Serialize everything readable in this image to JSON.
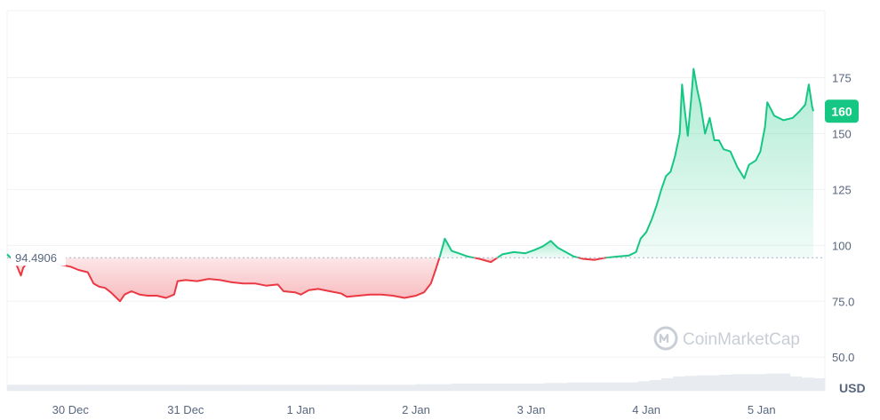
{
  "chart_data": {
    "type": "area",
    "unit": "USD",
    "watermark": "CoinMarketCap",
    "reference_value": 94.4906,
    "reference_label": "94.4906",
    "current_value": 160,
    "current_label": "160",
    "ylim": [
      35,
      205
    ],
    "y_ticks": [
      {
        "value": 50,
        "label": "50.0"
      },
      {
        "value": 75,
        "label": "75.0"
      },
      {
        "value": 100,
        "label": "100"
      },
      {
        "value": 125,
        "label": "125"
      },
      {
        "value": 150,
        "label": "150"
      },
      {
        "value": 175,
        "label": "175"
      }
    ],
    "x_ticks": [
      {
        "value": 0.55,
        "label": "30 Dec"
      },
      {
        "value": 1.55,
        "label": "31 Dec"
      },
      {
        "value": 2.55,
        "label": "1 Jan"
      },
      {
        "value": 3.55,
        "label": "2 Jan"
      },
      {
        "value": 4.55,
        "label": "3 Jan"
      },
      {
        "value": 5.55,
        "label": "4 Jan"
      },
      {
        "value": 6.55,
        "label": "5 Jan"
      }
    ],
    "xlim": [
      0,
      7.1
    ],
    "colors": {
      "up": "#16c784",
      "down": "#ea3943",
      "up_fill": "#16c784",
      "down_fill": "#ea3943",
      "grid": "#eff2f5",
      "volume": "#e8ebef",
      "reference": "#a6b0c3"
    },
    "series": [
      {
        "values": [
          [
            0.0,
            96.0
          ],
          [
            0.04,
            94.0
          ],
          [
            0.08,
            91.5
          ],
          [
            0.12,
            86.5
          ],
          [
            0.14,
            90.0
          ],
          [
            0.18,
            92.5
          ],
          [
            0.25,
            93.0
          ],
          [
            0.35,
            92.0
          ],
          [
            0.45,
            91.5
          ],
          [
            0.55,
            90.5
          ],
          [
            0.62,
            89.0
          ],
          [
            0.7,
            88.0
          ],
          [
            0.75,
            83.0
          ],
          [
            0.8,
            81.5
          ],
          [
            0.85,
            81.0
          ],
          [
            0.9,
            79.0
          ],
          [
            0.95,
            76.5
          ],
          [
            0.98,
            75.0
          ],
          [
            1.02,
            78.0
          ],
          [
            1.08,
            79.5
          ],
          [
            1.15,
            78.0
          ],
          [
            1.22,
            77.5
          ],
          [
            1.3,
            77.5
          ],
          [
            1.38,
            76.5
          ],
          [
            1.45,
            78.0
          ],
          [
            1.48,
            84.0
          ],
          [
            1.55,
            84.5
          ],
          [
            1.65,
            84.0
          ],
          [
            1.75,
            85.0
          ],
          [
            1.85,
            84.5
          ],
          [
            1.95,
            83.5
          ],
          [
            2.05,
            83.0
          ],
          [
            2.15,
            83.0
          ],
          [
            2.25,
            82.0
          ],
          [
            2.35,
            82.5
          ],
          [
            2.4,
            79.5
          ],
          [
            2.5,
            79.0
          ],
          [
            2.55,
            78.0
          ],
          [
            2.62,
            80.0
          ],
          [
            2.7,
            80.5
          ],
          [
            2.8,
            79.5
          ],
          [
            2.9,
            78.5
          ],
          [
            2.95,
            77.0
          ],
          [
            3.05,
            77.5
          ],
          [
            3.15,
            78.0
          ],
          [
            3.25,
            78.0
          ],
          [
            3.35,
            77.5
          ],
          [
            3.45,
            76.5
          ],
          [
            3.55,
            77.5
          ],
          [
            3.62,
            79.0
          ],
          [
            3.68,
            83.0
          ],
          [
            3.72,
            89.0
          ],
          [
            3.76,
            95.5
          ],
          [
            3.8,
            103.0
          ],
          [
            3.86,
            97.5
          ],
          [
            3.92,
            96.5
          ],
          [
            4.0,
            95.0
          ],
          [
            4.1,
            94.0
          ],
          [
            4.2,
            92.5
          ],
          [
            4.3,
            96.0
          ],
          [
            4.4,
            97.0
          ],
          [
            4.5,
            96.5
          ],
          [
            4.58,
            98.0
          ],
          [
            4.65,
            99.5
          ],
          [
            4.72,
            102.0
          ],
          [
            4.78,
            99.0
          ],
          [
            4.85,
            97.0
          ],
          [
            4.92,
            95.0
          ],
          [
            5.0,
            94.0
          ],
          [
            5.1,
            93.5
          ],
          [
            5.2,
            94.5
          ],
          [
            5.3,
            95.0
          ],
          [
            5.4,
            95.5
          ],
          [
            5.46,
            97.0
          ],
          [
            5.5,
            103.0
          ],
          [
            5.55,
            106.0
          ],
          [
            5.6,
            112.0
          ],
          [
            5.64,
            118.0
          ],
          [
            5.68,
            125.0
          ],
          [
            5.72,
            131.0
          ],
          [
            5.76,
            133.0
          ],
          [
            5.8,
            140.0
          ],
          [
            5.84,
            150.0
          ],
          [
            5.86,
            172.0
          ],
          [
            5.88,
            162.0
          ],
          [
            5.91,
            149.0
          ],
          [
            5.94,
            166.0
          ],
          [
            5.96,
            179.0
          ],
          [
            5.99,
            170.0
          ],
          [
            6.02,
            163.0
          ],
          [
            6.06,
            150.0
          ],
          [
            6.1,
            157.0
          ],
          [
            6.14,
            147.0
          ],
          [
            6.18,
            147.0
          ],
          [
            6.22,
            143.0
          ],
          [
            6.28,
            142.0
          ],
          [
            6.34,
            135.0
          ],
          [
            6.4,
            130.0
          ],
          [
            6.44,
            136.0
          ],
          [
            6.5,
            138.0
          ],
          [
            6.54,
            142.0
          ],
          [
            6.58,
            153.0
          ],
          [
            6.6,
            164.0
          ],
          [
            6.66,
            158.0
          ],
          [
            6.74,
            156.0
          ],
          [
            6.82,
            157.0
          ],
          [
            6.88,
            160.0
          ],
          [
            6.93,
            163.0
          ],
          [
            6.96,
            172.0
          ],
          [
            6.99,
            162.0
          ],
          [
            7.0,
            160.0
          ]
        ]
      }
    ],
    "volume": [
      5.0,
      5.0,
      5.0,
      5.0,
      5.0,
      5.0,
      5.0,
      5.0,
      5.0,
      5.0,
      5.0,
      5.0,
      5.0,
      5.0,
      5.0,
      5.0,
      5.0,
      5.0,
      5.0,
      5.0,
      5.0,
      5.0,
      5.0,
      5.0,
      5.0,
      5.0,
      5.0,
      5.0,
      5.0,
      5.0,
      5.0,
      5.0,
      5.0,
      5.0,
      5.0,
      5.5,
      5.5,
      5.5,
      6.0,
      6.0,
      6.0,
      6.0,
      6.0,
      6.0,
      6.0,
      6.0,
      6.5,
      6.5,
      7.0,
      7.0,
      7.0,
      7.0,
      7.0,
      7.0,
      8.0,
      9.0,
      10.5,
      12.0,
      12.5,
      13.0,
      13.0,
      13.5,
      14.0,
      14.0,
      14.0,
      14.5,
      14.5,
      12.0,
      11.0,
      10.5
    ]
  }
}
